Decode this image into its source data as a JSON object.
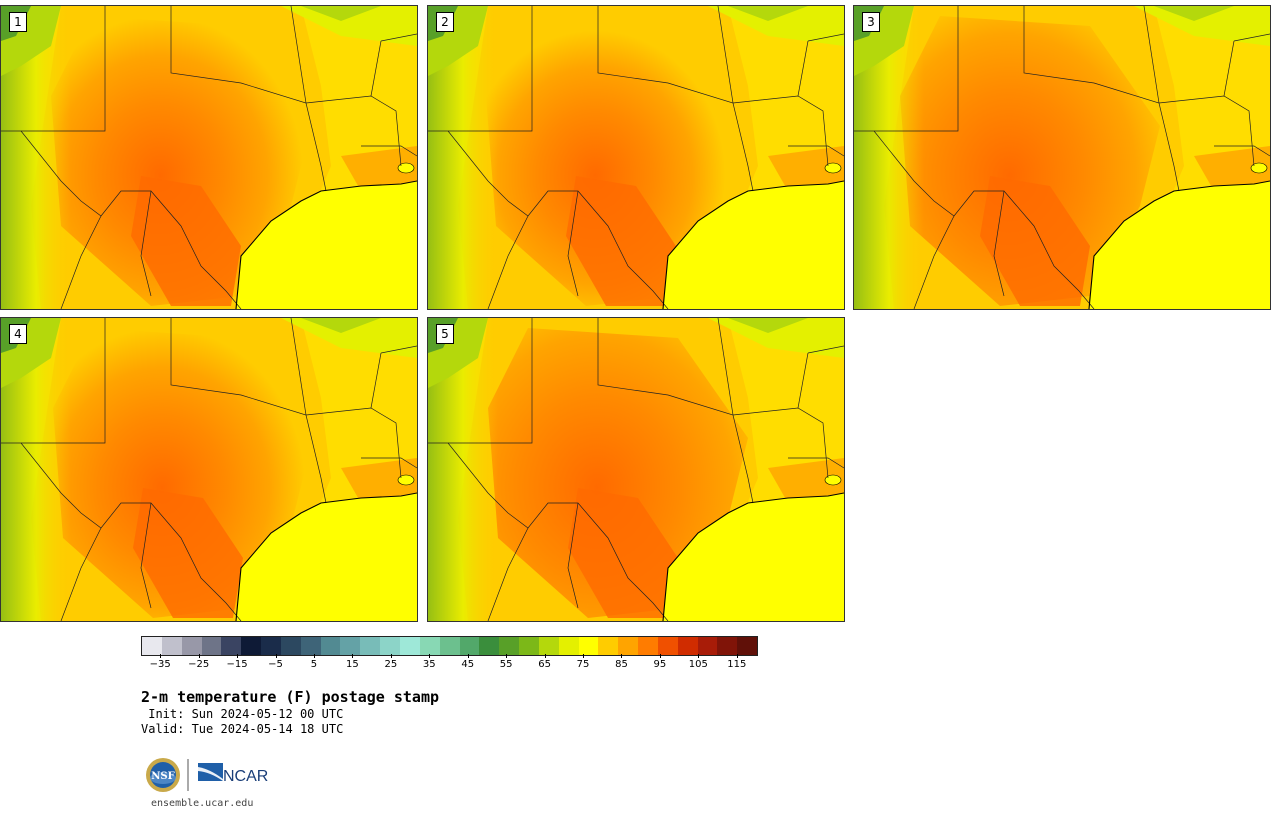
{
  "panels": [
    {
      "label": "1",
      "variant": 0
    },
    {
      "label": "2",
      "variant": 1
    },
    {
      "label": "3",
      "variant": 2
    },
    {
      "label": "4",
      "variant": 3
    },
    {
      "label": "5",
      "variant": 4
    }
  ],
  "colorbar": {
    "colors": [
      "#e8e8ee",
      "#c0c0cc",
      "#9898a8",
      "#6e7488",
      "#3a4462",
      "#0e1a36",
      "#1a2c4a",
      "#2c4860",
      "#3e6478",
      "#528a92",
      "#64a2a6",
      "#78bcb8",
      "#8cd4c8",
      "#9ee8d8",
      "#88d8b4",
      "#6cc08e",
      "#52a86a",
      "#3a8e3c",
      "#58a028",
      "#7cb818",
      "#b4d80c",
      "#e4f000",
      "#ffff00",
      "#ffcc00",
      "#ffa400",
      "#ff7c00",
      "#f05000",
      "#d02c00",
      "#a81c08",
      "#801408",
      "#601008"
    ],
    "tick_values": [
      -35,
      -25,
      -15,
      -5,
      5,
      15,
      25,
      35,
      45,
      55,
      65,
      75,
      85,
      95,
      105,
      115
    ],
    "tick_labels": [
      "−35",
      "−25",
      "−15",
      "−5",
      "5",
      "15",
      "25",
      "35",
      "45",
      "55",
      "65",
      "75",
      "85",
      "95",
      "105",
      "115"
    ],
    "min": -40,
    "max": 120
  },
  "title": "2-m temperature (F) postage stamp",
  "init_text": " Init: Sun 2024-05-12 00 UTC",
  "valid_text": "Valid: Tue 2024-05-14 18 UTC",
  "logos": {
    "nsf": "NSF",
    "ncar": "NCAR"
  },
  "site": "ensemble.ucar.edu"
}
